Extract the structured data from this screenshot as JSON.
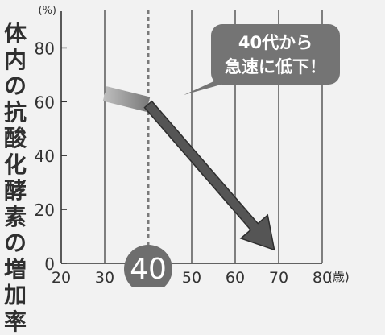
{
  "chart_data": {
    "type": "line",
    "ylabel_chars": [
      "体",
      "内",
      "の",
      "抗",
      "酸",
      "化",
      "酵",
      "素",
      "の",
      "増",
      "加",
      "率"
    ],
    "yunit": "(%)",
    "xunit": "(歳)",
    "x_ticks": [
      "20",
      "30",
      "40",
      "50",
      "60",
      "70",
      "80"
    ],
    "y_ticks": [
      "0",
      "20",
      "40",
      "60",
      "80"
    ],
    "xlim": [
      20,
      80
    ],
    "ylim": [
      0,
      90
    ],
    "highlight_x": 40,
    "highlight_label": "40",
    "series": [
      {
        "x": [
          30,
          40
        ],
        "y": [
          63,
          59
        ]
      },
      {
        "x": [
          40,
          69
        ],
        "y": [
          59,
          5
        ]
      }
    ],
    "callout": {
      "line1": "40代から",
      "line2": "急速に低下！"
    },
    "grid": "vertical"
  }
}
